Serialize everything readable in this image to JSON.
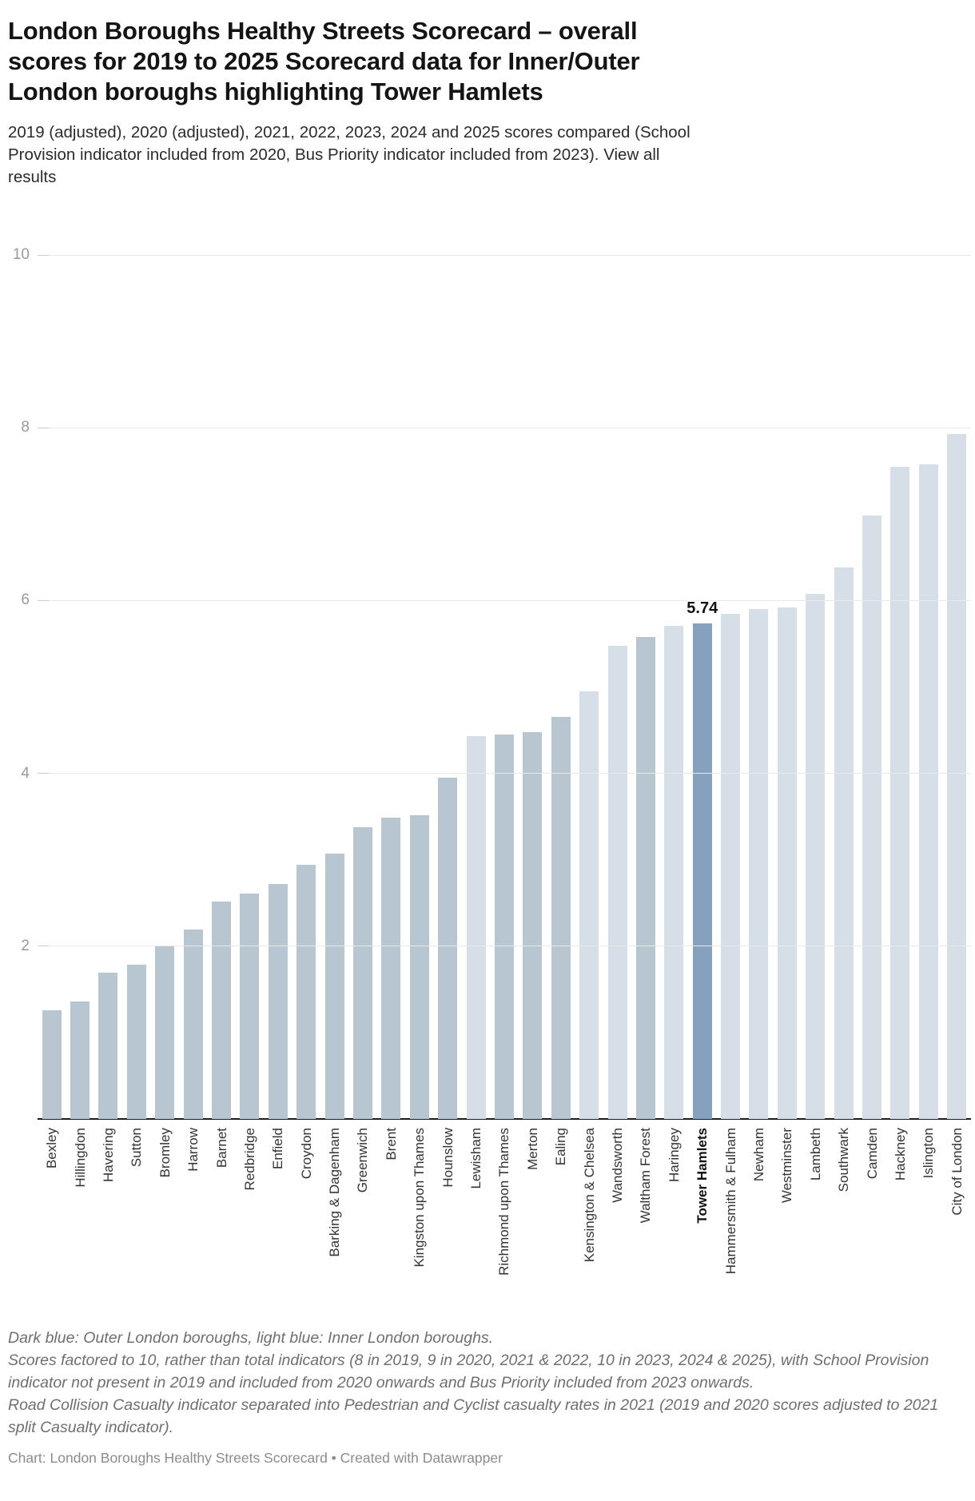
{
  "header": {
    "title_lines": [
      "London Boroughs Healthy Streets Scorecard – overall",
      "scores for 2019 to 2025 Scorecard data for Inner/Outer",
      "London boroughs highlighting Tower Hamlets"
    ],
    "subtitle_lines": [
      "2019 (adjusted), 2020 (adjusted), 2021, 2022, 2023, 2024 and 2025 scores compared (School",
      "Provision indicator included from 2020, Bus Priority indicator included from 2023). View all",
      "results"
    ]
  },
  "chart_data": {
    "type": "bar",
    "title": "London Boroughs Healthy Streets Scorecard – overall scores for 2019 to 2025",
    "xlabel": "",
    "ylabel": "",
    "ylim": [
      0,
      10
    ],
    "yticks": [
      2,
      4,
      6,
      8,
      10
    ],
    "grid": "horizontal",
    "legend_note": "Dark blue: Outer London boroughs, light blue: Inner London boroughs",
    "colors": {
      "outer": "#b8c6d2",
      "inner": "#d6dfe8",
      "highlight": "#85a1bd"
    },
    "categories": [
      "Bexley",
      "Hillingdon",
      "Havering",
      "Sutton",
      "Bromley",
      "Harrow",
      "Barnet",
      "Redbridge",
      "Enfield",
      "Croydon",
      "Barking & Dagenham",
      "Greenwich",
      "Brent",
      "Kingston upon Thames",
      "Hounslow",
      "Lewisham",
      "Richmond upon Thames",
      "Merton",
      "Ealing",
      "Kensington & Chelsea",
      "Wandsworth",
      "Waltham Forest",
      "Haringey",
      "Tower Hamlets",
      "Hammersmith & Fulham",
      "Newham",
      "Westminster",
      "Lambeth",
      "Southwark",
      "Camden",
      "Hackney",
      "Islington",
      "City of London"
    ],
    "values": [
      1.26,
      1.36,
      1.69,
      1.79,
      2.01,
      2.19,
      2.52,
      2.61,
      2.72,
      2.94,
      3.07,
      3.38,
      3.49,
      3.52,
      3.95,
      4.43,
      4.45,
      4.48,
      4.65,
      4.95,
      5.48,
      5.58,
      5.71,
      5.74,
      5.85,
      5.9,
      5.92,
      6.08,
      6.38,
      6.98,
      7.55,
      7.58,
      7.93
    ],
    "groups": [
      "outer",
      "outer",
      "outer",
      "outer",
      "outer",
      "outer",
      "outer",
      "outer",
      "outer",
      "outer",
      "outer",
      "outer",
      "outer",
      "outer",
      "outer",
      "inner",
      "outer",
      "outer",
      "outer",
      "inner",
      "inner",
      "outer",
      "inner",
      "highlight",
      "inner",
      "inner",
      "inner",
      "inner",
      "inner",
      "inner",
      "inner",
      "inner",
      "inner"
    ],
    "annotation": {
      "text": "5.74",
      "category": "Tower Hamlets"
    }
  },
  "footer": {
    "notes": [
      "Dark blue: Outer London boroughs, light blue: Inner London boroughs.",
      "Scores factored to 10, rather than total indicators (8 in 2019, 9 in 2020, 2021 & 2022, 10 in 2023, 2024 & 2025), with School Provision indicator not present in 2019 and included from 2020 onwards and Bus Priority included from 2023 onwards.",
      "Road Collision Casualty indicator separated into Pedestrian and Cyclist casualty rates in 2021 (2019 and 2020 scores adjusted to 2021 split Casualty indicator)."
    ],
    "credit": "Chart: London Boroughs Healthy Streets Scorecard • Created with Datawrapper"
  }
}
